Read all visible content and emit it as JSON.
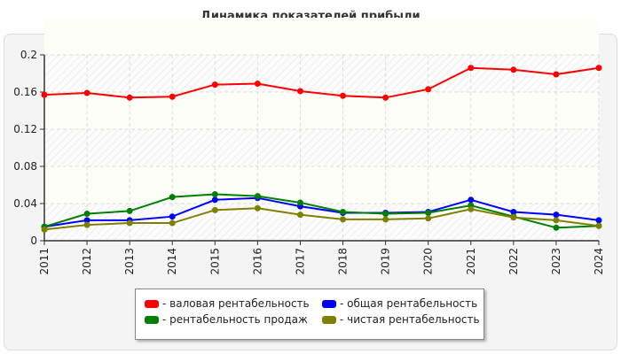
{
  "chart_data": {
    "type": "line",
    "title": "Динамика показателей прибыли",
    "x": [
      "2011",
      "2012",
      "2013",
      "2014",
      "2015",
      "2016",
      "2017",
      "2018",
      "2019",
      "2020",
      "2021",
      "2022",
      "2023",
      "2024"
    ],
    "ylim": [
      0,
      0.2
    ],
    "yticks": [
      "0",
      "0.04",
      "0.08",
      "0.12",
      "0.16",
      "0.2"
    ],
    "grid": true,
    "legend_position": "bottom",
    "series": [
      {
        "name": "- валовая рентабельность",
        "color": "#ff0000",
        "values": [
          0.157,
          0.159,
          0.154,
          0.155,
          0.168,
          0.169,
          0.161,
          0.156,
          0.154,
          0.163,
          0.186,
          0.184,
          0.179,
          0.186
        ]
      },
      {
        "name": "- общая рентабельность",
        "color": "#0000ff",
        "values": [
          0.015,
          0.022,
          0.022,
          0.026,
          0.044,
          0.046,
          0.037,
          0.03,
          0.03,
          0.031,
          0.044,
          0.031,
          0.028,
          0.022
        ]
      },
      {
        "name": "- рентабельность продаж",
        "color": "#008000",
        "values": [
          0.015,
          0.029,
          0.032,
          0.047,
          0.05,
          0.048,
          0.041,
          0.031,
          0.029,
          0.03,
          0.038,
          0.026,
          0.014,
          0.016
        ]
      },
      {
        "name": "- чистая рентабельность",
        "color": "#808000",
        "values": [
          0.012,
          0.017,
          0.019,
          0.019,
          0.033,
          0.035,
          0.028,
          0.023,
          0.023,
          0.024,
          0.034,
          0.025,
          0.022,
          0.016
        ]
      }
    ]
  }
}
